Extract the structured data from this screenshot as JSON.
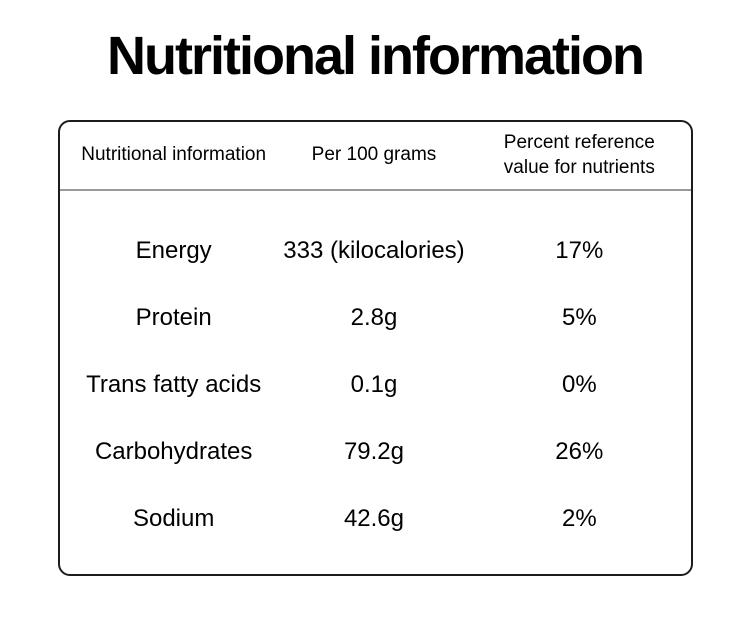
{
  "title": "Nutritional information",
  "colors": {
    "background": "#ffffff",
    "text": "#000000",
    "panel_border": "#1c1c1c",
    "header_divider": "#999999"
  },
  "table": {
    "columns": [
      "Nutritional information",
      "Per 100 grams",
      "Percent reference value for nutrients"
    ],
    "rows": [
      [
        "Energy",
        "333 (kilocalories)",
        "17%"
      ],
      [
        "Protein",
        "2.8g",
        "5%"
      ],
      [
        "Trans fatty acids",
        "0.1g",
        "0%"
      ],
      [
        "Carbohydrates",
        "79.2g",
        "26%"
      ],
      [
        "Sodium",
        "42.6g",
        "2%"
      ]
    ]
  }
}
